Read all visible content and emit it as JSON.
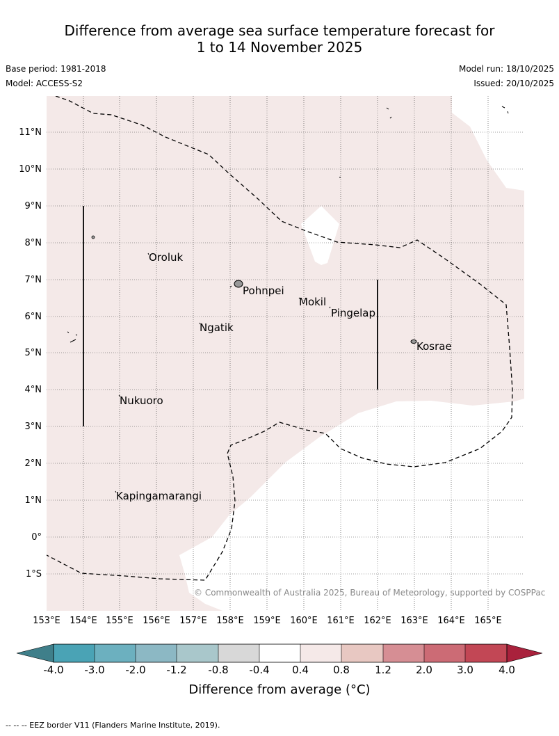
{
  "title": {
    "line1": "Difference from average sea surface temperature forecast for",
    "line2": "1 to 14 November 2025"
  },
  "meta": {
    "base_period": "Base period: 1981-2018",
    "model": "Model: ACCESS-S2",
    "model_run": "Model run: 18/10/2025",
    "issued": "Issued: 20/10/2025"
  },
  "map": {
    "lat_labels": [
      "11°N",
      "10°N",
      "9°N",
      "8°N",
      "7°N",
      "6°N",
      "5°N",
      "4°N",
      "3°N",
      "2°N",
      "1°N",
      "0°",
      "1°S"
    ],
    "lon_labels": [
      "153°E",
      "154°E",
      "155°E",
      "156°E",
      "157°E",
      "158°E",
      "159°E",
      "160°E",
      "161°E",
      "162°E",
      "163°E",
      "164°E",
      "165°E"
    ],
    "places": [
      {
        "name": "Oroluk"
      },
      {
        "name": "Pohnpei"
      },
      {
        "name": "Mokil"
      },
      {
        "name": "Pingelap"
      },
      {
        "name": "Ngatik"
      },
      {
        "name": "Kosrae"
      },
      {
        "name": "Nukuoro"
      },
      {
        "name": "Kapingamarangi"
      }
    ],
    "copyright": "© Commonwealth of Australia 2025, Bureau of Meteorology, supported by COSPPac",
    "colors": {
      "anomaly_0_4_to_0_8": "#f4e9e8",
      "land": "#999999",
      "eez": "#000000"
    }
  },
  "colorbar": {
    "ticks": [
      "-4.0",
      "-3.0",
      "-2.0",
      "-1.2",
      "-0.8",
      "-0.4",
      "0.4",
      "0.8",
      "1.2",
      "2.0",
      "3.0",
      "4.0"
    ],
    "colors": [
      "#3f7f8a",
      "#4aa3b5",
      "#6cb0bf",
      "#8cb8c4",
      "#a9c7cb",
      "#d8d8d8",
      "#ffffff",
      "#f5e9e8",
      "#e8c8c2",
      "#d68e94",
      "#cc6b75",
      "#c24755",
      "#a9213c"
    ],
    "label": "Difference from average (°C)"
  },
  "footnote": "--  --  -- EEZ border V11 (Flanders Marine Institute, 2019)."
}
